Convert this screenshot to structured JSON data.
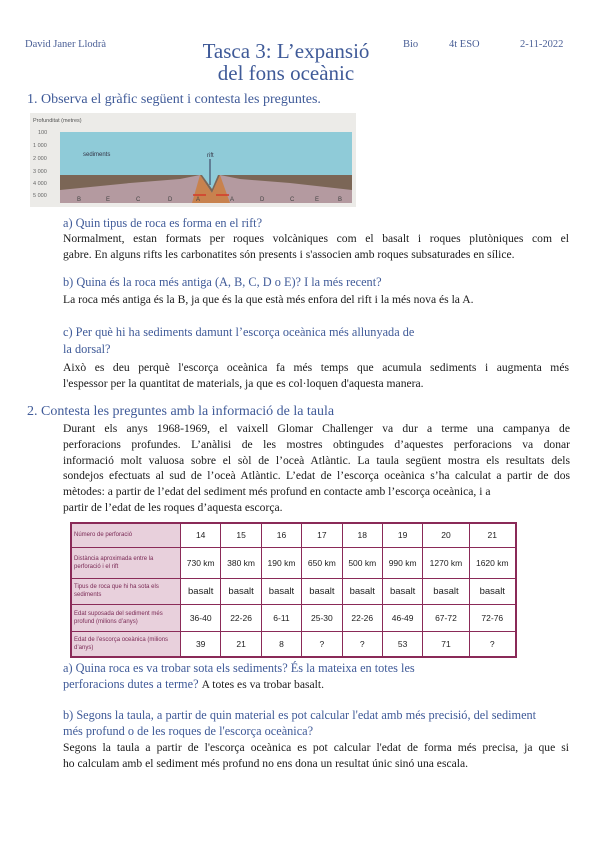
{
  "header": {
    "author": "David Janer Llodrà",
    "title_line1": "Tasca 3: L’expansió",
    "title_line2": "del fons oceànic",
    "subject": "Bio",
    "course": "4t ESO",
    "date": "2-11-2022"
  },
  "section1": {
    "heading": "1. Observa el gràfic següent i contesta les preguntes.",
    "figure": {
      "ylabel": "Profunditat (metres)",
      "yticks": [
        "100",
        "1 000",
        "2 000",
        "3 000",
        "4 000",
        "5 000"
      ],
      "labels": {
        "sediments": "sediments",
        "rift": "rift"
      },
      "rock_labels": [
        "B",
        "E",
        "C",
        "D",
        "A",
        "A",
        "D",
        "C",
        "E",
        "B"
      ],
      "colors": {
        "water": "#8fcbd8",
        "sediment": "#7b6656",
        "rock": "#b49aa0",
        "magma": "#c8824e",
        "arrow": "#d43a2a"
      }
    },
    "qa": {
      "q": "a) Quin tipus de roca es forma en el rift?",
      "a": [
        "Normalment, estan formats per roques volcàniques com el basalt i roques plutòniques com el",
        "gabre. En alguns rifts les carbonatites són presents i s'associen amb roques subsaturades en sílice."
      ]
    },
    "qb": {
      "q": "b) Quina és la roca més antiga (A, B, C, D o E)? I la més recent?",
      "a": "La roca més antiga és la B, ja que és la que està més enfora del rift i la més nova és la A."
    },
    "qc": {
      "q1": "c) Per què hi ha sediments damunt l’escorça oceànica més allunyada de",
      "q2": "la dorsal?",
      "a": [
        "Això es deu perquè l'escorça oceànica fa més temps que acumula sediments i augmenta més",
        "l'espessor per la quantitat de materials, ja que es col·loquen d'aquesta manera."
      ]
    }
  },
  "section2": {
    "heading": "2. Contesta les preguntes amb la informació de la taula",
    "intro": [
      "Durant els anys 1968-1969, el vaixell Glomar Challenger va dur a terme una campanya de",
      "perforacions profundes. L’anàlisi de les mostres obtingudes d’aquestes perforacions va donar",
      "informació molt valuosa sobre el sòl de l’oceà Atlàntic. La taula següent mostra els resultats dels",
      "sondejos efectuats al sud de l’oceà Atlàntic. L’edat de l’escorça oceànica s’ha calculat a partir de dos",
      "mètodes: a partir de l’edat del sediment més profund en contacte amb l’escorça oceànica, i a",
      "partir de l’edat de les roques d’aquesta escorça."
    ],
    "table": {
      "rows": [
        {
          "label": "Número de perforació",
          "cells": [
            "14",
            "15",
            "16",
            "17",
            "18",
            "19",
            "20",
            "21"
          ]
        },
        {
          "label": "Distància aproximada entre la perforació i el rift",
          "cells": [
            "730 km",
            "380 km",
            "190 km",
            "650 km",
            "500 km",
            "990 km",
            "1270 km",
            "1620 km"
          ]
        },
        {
          "label": "Tipus de roca que hi ha sota els sediments",
          "cells": [
            "basalt",
            "basalt",
            "basalt",
            "basalt",
            "basalt",
            "basalt",
            "basalt",
            "basalt"
          ]
        },
        {
          "label": "Edat suposada del sediment més profund (milions d’anys)",
          "cells": [
            "36-40",
            "22-26",
            "6-11",
            "25-30",
            "22-26",
            "46-49",
            "67-72",
            "72-76"
          ]
        },
        {
          "label": "Edat de l’escorça oceànica (milions d’anys)",
          "cells": [
            "39",
            "21",
            "8",
            "?",
            "?",
            "53",
            "71",
            "?"
          ]
        }
      ]
    },
    "qa": {
      "q1": "a) Quina roca es va trobar sota els sediments? És la mateixa en totes les",
      "q2": "perforacions dutes a terme?",
      "a": "A totes es va trobar basalt."
    },
    "qb": {
      "q1": "b) Segons la taula, a partir de quin material es pot calcular l'edat amb més precisió, del sediment",
      "q2": "més profund o de les roques de l'escorça oceànica?",
      "a": [
        "Segons la taula a partir de l'escorça oceànica es pot calcular l'edat de forma més precisa, ja que si",
        "ho calculam amb el sediment més profund no ens dona un resultat únic sinó una escala."
      ]
    }
  }
}
